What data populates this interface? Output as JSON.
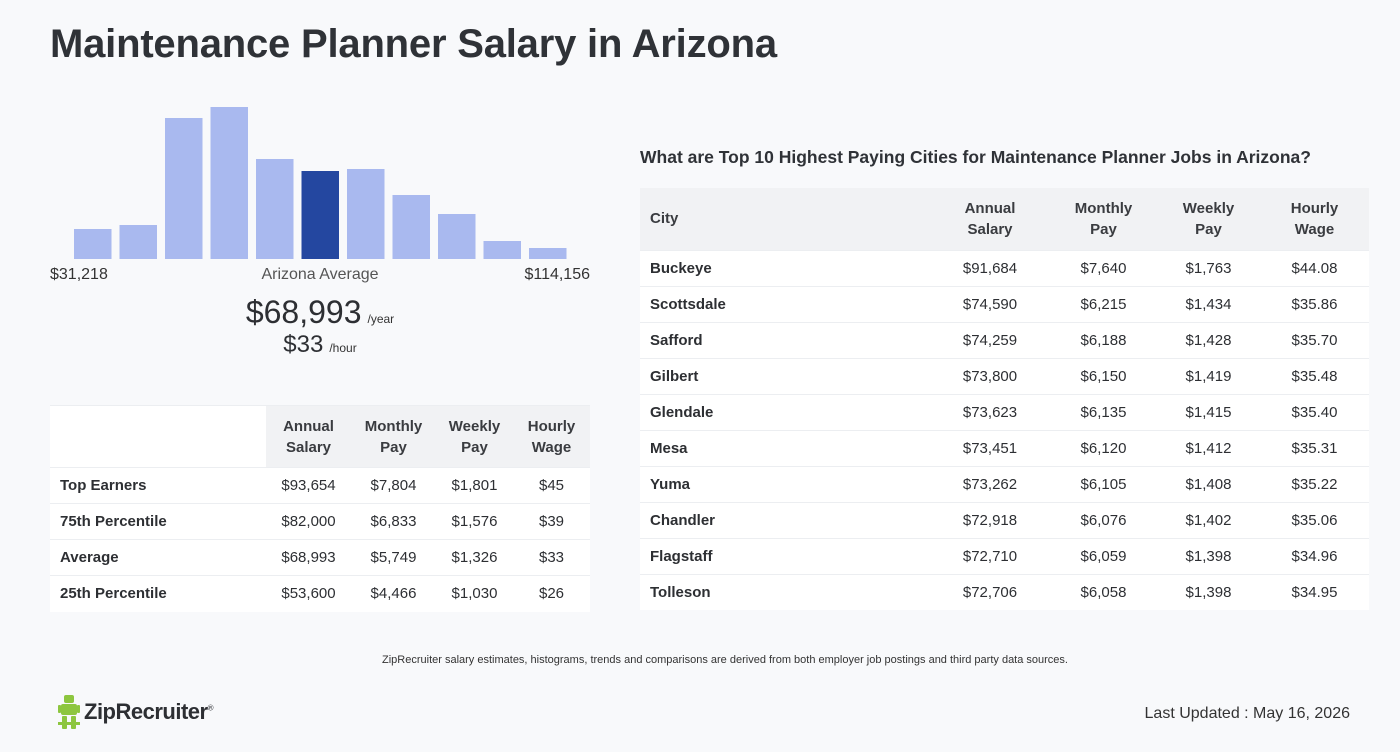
{
  "page_title": "Maintenance Planner Salary in Arizona",
  "chart_data": {
    "type": "bar",
    "title": "",
    "xlabel": "",
    "ylabel": "",
    "x_range_labels": [
      "$31,218",
      "$114,156"
    ],
    "values": [
      30,
      34,
      141,
      152,
      100,
      88,
      90,
      64,
      45,
      18,
      11
    ],
    "highlight_index": 5,
    "colors": {
      "bar": "#a9b9ef",
      "highlight": "#2447a0"
    }
  },
  "histogram": {
    "min_label": "$31,218",
    "max_label": "$114,156",
    "avg_label": "Arizona Average",
    "avg_year": "$68,993",
    "avg_year_unit": "/year",
    "avg_hour": "$33",
    "avg_hour_unit": "/hour"
  },
  "percentile_table": {
    "headers": [
      "Annual\nSalary",
      "Monthly\nPay",
      "Weekly\nPay",
      "Hourly\nWage"
    ],
    "rows": [
      {
        "label": "Top Earners",
        "annual": "$93,654",
        "monthly": "$7,804",
        "weekly": "$1,801",
        "hourly": "$45"
      },
      {
        "label": "75th Percentile",
        "annual": "$82,000",
        "monthly": "$6,833",
        "weekly": "$1,576",
        "hourly": "$39"
      },
      {
        "label": "Average",
        "annual": "$68,993",
        "monthly": "$5,749",
        "weekly": "$1,326",
        "hourly": "$33"
      },
      {
        "label": "25th Percentile",
        "annual": "$53,600",
        "monthly": "$4,466",
        "weekly": "$1,030",
        "hourly": "$26"
      }
    ]
  },
  "cities": {
    "heading": "What are Top 10 Highest Paying Cities for Maintenance Planner Jobs in Arizona?",
    "headers": [
      "City",
      "Annual\nSalary",
      "Monthly\nPay",
      "Weekly\nPay",
      "Hourly\nWage"
    ],
    "rows": [
      {
        "city": "Buckeye",
        "annual": "$91,684",
        "monthly": "$7,640",
        "weekly": "$1,763",
        "hourly": "$44.08"
      },
      {
        "city": "Scottsdale",
        "annual": "$74,590",
        "monthly": "$6,215",
        "weekly": "$1,434",
        "hourly": "$35.86"
      },
      {
        "city": "Safford",
        "annual": "$74,259",
        "monthly": "$6,188",
        "weekly": "$1,428",
        "hourly": "$35.70"
      },
      {
        "city": "Gilbert",
        "annual": "$73,800",
        "monthly": "$6,150",
        "weekly": "$1,419",
        "hourly": "$35.48"
      },
      {
        "city": "Glendale",
        "annual": "$73,623",
        "monthly": "$6,135",
        "weekly": "$1,415",
        "hourly": "$35.40"
      },
      {
        "city": "Mesa",
        "annual": "$73,451",
        "monthly": "$6,120",
        "weekly": "$1,412",
        "hourly": "$35.31"
      },
      {
        "city": "Yuma",
        "annual": "$73,262",
        "monthly": "$6,105",
        "weekly": "$1,408",
        "hourly": "$35.22"
      },
      {
        "city": "Chandler",
        "annual": "$72,918",
        "monthly": "$6,076",
        "weekly": "$1,402",
        "hourly": "$35.06"
      },
      {
        "city": "Flagstaff",
        "annual": "$72,710",
        "monthly": "$6,059",
        "weekly": "$1,398",
        "hourly": "$34.96"
      },
      {
        "city": "Tolleson",
        "annual": "$72,706",
        "monthly": "$6,058",
        "weekly": "$1,398",
        "hourly": "$34.95"
      }
    ]
  },
  "footer": {
    "disclaimer": "ZipRecruiter salary estimates, histograms, trends and comparisons are derived from both employer job postings and third party data sources.",
    "logo_text": "ZipRecruiter",
    "logo_mark": "®",
    "last_updated": "Last Updated : May 16, 2026"
  },
  "colors": {
    "logo_green": "#8dc63f"
  },
  "icons": {
    "logo": "zip-person-icon"
  }
}
